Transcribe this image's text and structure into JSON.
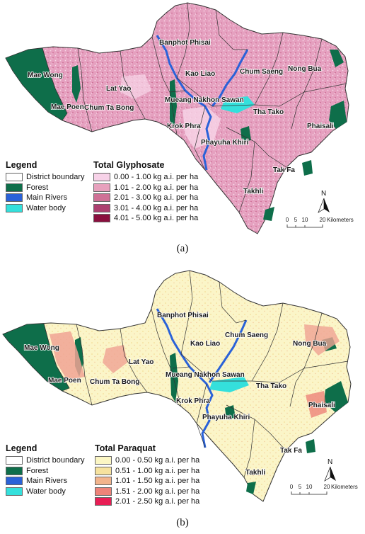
{
  "panel_a": {
    "caption": "(a)",
    "legend": {
      "title": "Legend",
      "items": [
        {
          "label": "District boundary",
          "color": "#ffffff"
        },
        {
          "label": "Forest",
          "color": "#0e6e4a"
        },
        {
          "label": "Main Rivers",
          "color": "#2a62d8"
        },
        {
          "label": "Water body",
          "color": "#34e0dc"
        }
      ]
    },
    "classes": {
      "title": "Total Glyphosate",
      "items": [
        {
          "label": "0.00 - 1.00 kg a.i. per ha",
          "color": "#f7d2e8"
        },
        {
          "label": "1.01 - 2.00 kg a.i. per ha",
          "color": "#e7a1bd"
        },
        {
          "label": "2.01 - 3.00 kg a.i. per ha",
          "color": "#cf7196"
        },
        {
          "label": "3.01 - 4.00 kg a.i. per ha",
          "color": "#ad4070"
        },
        {
          "label": "4.01 - 5.00 kg a.i. per ha",
          "color": "#8a0f3e"
        }
      ]
    },
    "districts": [
      "Banphot Phisai",
      "Kao Liao",
      "Chum Saeng",
      "Nong Bua",
      "Mae Wong",
      "Lat Yao",
      "Mae Poen",
      "Chum Ta Bong",
      "Mueang Nakhon Sawan",
      "Tha Tako",
      "Krok Phra",
      "Phayuha Khiri",
      "Phaisali",
      "Tak Fa",
      "Takhli"
    ],
    "scale": {
      "ticks": [
        "0",
        "5",
        "10",
        "20"
      ],
      "unit": "Kilometers"
    },
    "north": "N"
  },
  "panel_b": {
    "caption": "(b)",
    "legend": {
      "title": "Legend",
      "items": [
        {
          "label": "District boundary",
          "color": "#ffffff"
        },
        {
          "label": "Forest",
          "color": "#0e6e4a"
        },
        {
          "label": "Main Rivers",
          "color": "#2a62d8"
        },
        {
          "label": "Water body",
          "color": "#34e0dc"
        }
      ]
    },
    "classes": {
      "title": "Total Paraquat",
      "items": [
        {
          "label": "0.00 - 0.50 kg a.i. per ha",
          "color": "#fbf6c4"
        },
        {
          "label": "0.51 - 1.00 kg a.i. per ha",
          "color": "#f6e29e"
        },
        {
          "label": "1.01 - 1.50 kg a.i. per ha",
          "color": "#f2b48c"
        },
        {
          "label": "1.51 - 2.00 kg a.i. per ha",
          "color": "#ee8379"
        },
        {
          "label": "2.01 - 2.50 kg a.i. per ha",
          "color": "#e81e55"
        }
      ]
    },
    "districts": [
      "Banphot Phisai",
      "Kao Liao",
      "Chum Saeng",
      "Nong Bua",
      "Mae Wong",
      "Lat Yao",
      "Mae Poen",
      "Chum Ta Bong",
      "Mueang Nakhon Sawan",
      "Tha Tako",
      "Krok Phra",
      "Phayuha Khiri",
      "Phaisali",
      "Tak Fa",
      "Takhli"
    ],
    "scale": {
      "ticks": [
        "0",
        "5",
        "10",
        "20"
      ],
      "unit": "Kilometers"
    },
    "north": "N"
  },
  "map_colors": {
    "forest": "#0e6e4a",
    "river": "#2a62d8",
    "water": "#34e0dc",
    "boundary": "#333333"
  }
}
